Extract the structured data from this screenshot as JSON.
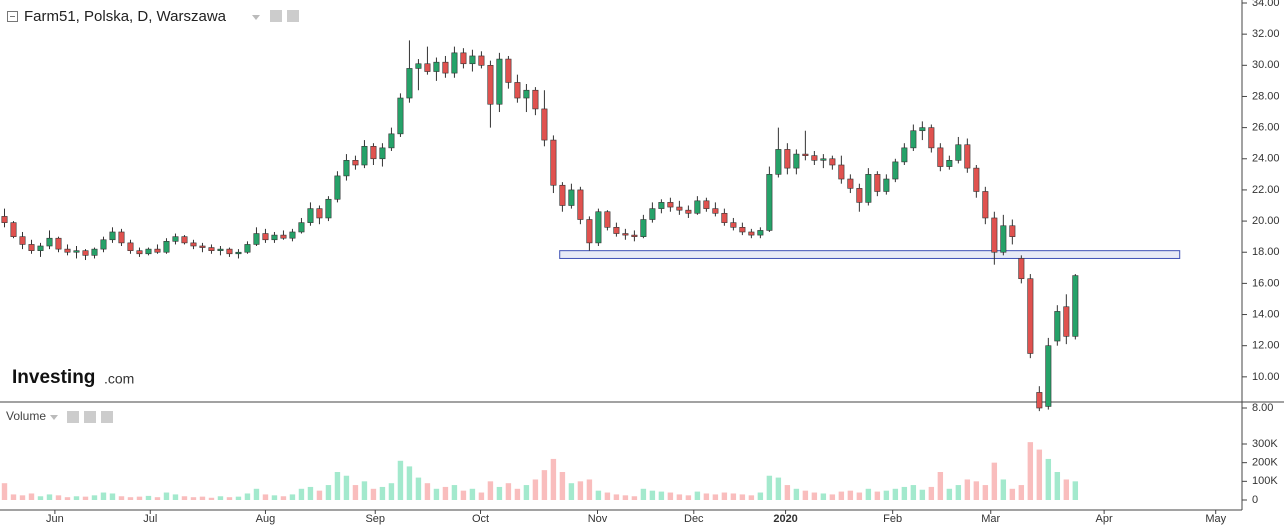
{
  "chart_data": {
    "type": "candlestick",
    "title": "Farm51, Polska, D, Warszawa",
    "volume_title": "Volume",
    "logo": {
      "brand": "Investing",
      "suffix": ".com"
    },
    "up_color": "#26a269",
    "down_color": "#e0524f",
    "volume_up_color": "#a3e9cd",
    "volume_down_color": "#f9bdbd",
    "xlim": [
      -0.5,
      137.3
    ],
    "xticks": [
      {
        "value": 5.6,
        "label": "Jun"
      },
      {
        "value": 16.2,
        "label": "Jul"
      },
      {
        "value": 29,
        "label": "Aug"
      },
      {
        "value": 41.2,
        "label": "Sep"
      },
      {
        "value": 52.9,
        "label": "Oct"
      },
      {
        "value": 65.9,
        "label": "Nov"
      },
      {
        "value": 76.6,
        "label": "Dec"
      },
      {
        "value": 86.8,
        "label": "2020"
      },
      {
        "value": 98.7,
        "label": "Feb"
      },
      {
        "value": 109.6,
        "label": "Mar"
      },
      {
        "value": 122.2,
        "label": "Apr"
      },
      {
        "value": 134.6,
        "label": "May"
      }
    ],
    "ylim": [
      8,
      34
    ],
    "yticks": [
      {
        "value": 8,
        "label": "8.00"
      },
      {
        "value": 10,
        "label": "10.00"
      },
      {
        "value": 12,
        "label": "12.00"
      },
      {
        "value": 14,
        "label": "14.00"
      },
      {
        "value": 16,
        "label": "16.00"
      },
      {
        "value": 18,
        "label": "18.00"
      },
      {
        "value": 20,
        "label": "20.00"
      },
      {
        "value": 22,
        "label": "22.00"
      },
      {
        "value": 24,
        "label": "24.00"
      },
      {
        "value": 26,
        "label": "26.00"
      },
      {
        "value": 28,
        "label": "28.00"
      },
      {
        "value": 30,
        "label": "30.00"
      },
      {
        "value": 32,
        "label": "32.00"
      },
      {
        "value": 34,
        "label": "34.00"
      }
    ],
    "y2lim": [
      0,
      300000
    ],
    "y2ticks": [
      0,
      {
        "value": 100000,
        "label": "100K"
      },
      {
        "value": 200000,
        "label": "200K"
      },
      {
        "value": 300000,
        "label": "300K"
      }
    ],
    "zone": {
      "xlim": [
        61.7,
        130.6
      ],
      "ylim": [
        17.6,
        18.1
      ],
      "color": "#3f51b5"
    },
    "ohlc": [
      [
        20.3,
        20.8,
        19.6,
        19.9
      ],
      [
        19.9,
        20.0,
        18.9,
        19.0
      ],
      [
        19.0,
        19.3,
        18.2,
        18.5
      ],
      [
        18.5,
        18.8,
        17.9,
        18.1
      ],
      [
        18.1,
        18.6,
        17.7,
        18.4
      ],
      [
        18.4,
        19.4,
        18.2,
        18.9
      ],
      [
        18.9,
        19.0,
        18.0,
        18.2
      ],
      [
        18.2,
        18.5,
        17.8,
        18.0
      ],
      [
        18.0,
        18.4,
        17.6,
        18.1
      ],
      [
        18.1,
        18.2,
        17.5,
        17.8
      ],
      [
        17.8,
        18.3,
        17.6,
        18.2
      ],
      [
        18.2,
        19.0,
        18.0,
        18.8
      ],
      [
        18.8,
        19.6,
        18.6,
        19.3
      ],
      [
        19.3,
        19.5,
        18.4,
        18.6
      ],
      [
        18.6,
        18.8,
        17.9,
        18.1
      ],
      [
        18.1,
        18.3,
        17.7,
        17.9
      ],
      [
        17.9,
        18.3,
        17.8,
        18.2
      ],
      [
        18.2,
        18.5,
        17.9,
        18.0
      ],
      [
        18.0,
        18.9,
        17.9,
        18.7
      ],
      [
        18.7,
        19.2,
        18.5,
        19.0
      ],
      [
        19.0,
        19.1,
        18.5,
        18.6
      ],
      [
        18.6,
        18.8,
        18.2,
        18.4
      ],
      [
        18.4,
        18.6,
        18.0,
        18.3
      ],
      [
        18.3,
        18.5,
        17.9,
        18.1
      ],
      [
        18.1,
        18.4,
        17.8,
        18.2
      ],
      [
        18.2,
        18.3,
        17.7,
        17.9
      ],
      [
        17.9,
        18.2,
        17.6,
        18.0
      ],
      [
        18.0,
        18.7,
        17.9,
        18.5
      ],
      [
        18.5,
        19.6,
        18.4,
        19.2
      ],
      [
        19.2,
        19.5,
        18.6,
        18.8
      ],
      [
        18.8,
        19.3,
        18.6,
        19.1
      ],
      [
        19.1,
        19.4,
        18.8,
        18.9
      ],
      [
        18.9,
        19.5,
        18.7,
        19.3
      ],
      [
        19.3,
        20.2,
        19.2,
        19.9
      ],
      [
        19.9,
        21.2,
        19.7,
        20.8
      ],
      [
        20.8,
        21.0,
        19.8,
        20.2
      ],
      [
        20.2,
        21.6,
        20.0,
        21.4
      ],
      [
        21.4,
        23.2,
        21.2,
        22.9
      ],
      [
        22.9,
        24.3,
        22.6,
        23.9
      ],
      [
        23.9,
        24.2,
        23.3,
        23.6
      ],
      [
        23.6,
        25.2,
        23.4,
        24.8
      ],
      [
        24.8,
        25.0,
        23.6,
        24.0
      ],
      [
        24.0,
        25.0,
        23.5,
        24.7
      ],
      [
        24.7,
        26.0,
        24.5,
        25.6
      ],
      [
        25.6,
        28.2,
        25.4,
        27.9
      ],
      [
        27.9,
        31.6,
        27.6,
        29.8
      ],
      [
        29.8,
        30.4,
        28.4,
        30.1
      ],
      [
        30.1,
        31.2,
        29.4,
        29.6
      ],
      [
        29.6,
        30.5,
        29.0,
        30.2
      ],
      [
        30.2,
        30.6,
        29.2,
        29.5
      ],
      [
        29.5,
        31.2,
        29.2,
        30.8
      ],
      [
        30.8,
        31.1,
        29.8,
        30.1
      ],
      [
        30.1,
        31.0,
        29.6,
        30.6
      ],
      [
        30.6,
        30.9,
        29.8,
        30.0
      ],
      [
        30.0,
        30.3,
        26.0,
        27.5
      ],
      [
        27.5,
        30.8,
        27.0,
        30.4
      ],
      [
        30.4,
        30.6,
        28.5,
        28.9
      ],
      [
        28.9,
        29.4,
        27.6,
        27.9
      ],
      [
        27.9,
        28.8,
        27.0,
        28.4
      ],
      [
        28.4,
        28.6,
        26.8,
        27.2
      ],
      [
        27.2,
        28.4,
        24.8,
        25.2
      ],
      [
        25.2,
        25.5,
        21.8,
        22.3
      ],
      [
        22.3,
        22.5,
        20.6,
        21.0
      ],
      [
        21.0,
        22.4,
        20.8,
        22.0
      ],
      [
        22.0,
        22.2,
        19.8,
        20.1
      ],
      [
        20.1,
        20.3,
        18.1,
        18.6
      ],
      [
        18.6,
        20.8,
        18.4,
        20.6
      ],
      [
        20.6,
        20.7,
        19.4,
        19.6
      ],
      [
        19.6,
        19.9,
        19.0,
        19.2
      ],
      [
        19.2,
        19.5,
        18.8,
        19.1
      ],
      [
        19.1,
        19.4,
        18.7,
        19.0
      ],
      [
        19.0,
        20.4,
        18.9,
        20.1
      ],
      [
        20.1,
        21.2,
        19.9,
        20.8
      ],
      [
        20.8,
        21.4,
        20.5,
        21.2
      ],
      [
        21.2,
        21.5,
        20.6,
        20.9
      ],
      [
        20.9,
        21.3,
        20.4,
        20.7
      ],
      [
        20.7,
        21.0,
        20.2,
        20.5
      ],
      [
        20.5,
        21.6,
        20.4,
        21.3
      ],
      [
        21.3,
        21.5,
        20.6,
        20.8
      ],
      [
        20.8,
        21.2,
        20.3,
        20.5
      ],
      [
        20.5,
        20.8,
        19.7,
        19.9
      ],
      [
        19.9,
        20.2,
        19.4,
        19.6
      ],
      [
        19.6,
        19.9,
        19.1,
        19.3
      ],
      [
        19.3,
        19.5,
        18.9,
        19.1
      ],
      [
        19.1,
        19.6,
        18.9,
        19.4
      ],
      [
        19.4,
        23.5,
        19.3,
        23.0
      ],
      [
        23.0,
        26.0,
        22.8,
        24.6
      ],
      [
        24.6,
        25.0,
        23.0,
        23.4
      ],
      [
        23.4,
        24.6,
        23.0,
        24.3
      ],
      [
        24.3,
        25.8,
        23.9,
        24.2
      ],
      [
        24.2,
        24.5,
        23.6,
        23.9
      ],
      [
        23.9,
        24.3,
        23.4,
        24.0
      ],
      [
        24.0,
        24.2,
        23.3,
        23.6
      ],
      [
        23.6,
        24.2,
        22.4,
        22.7
      ],
      [
        22.7,
        23.0,
        21.8,
        22.1
      ],
      [
        22.1,
        22.4,
        20.6,
        21.2
      ],
      [
        21.2,
        23.4,
        21.0,
        23.0
      ],
      [
        23.0,
        23.2,
        21.6,
        21.9
      ],
      [
        21.9,
        23.0,
        21.7,
        22.7
      ],
      [
        22.7,
        24.0,
        22.5,
        23.8
      ],
      [
        23.8,
        25.0,
        23.6,
        24.7
      ],
      [
        24.7,
        26.2,
        24.5,
        25.8
      ],
      [
        25.8,
        26.4,
        25.2,
        26.0
      ],
      [
        26.0,
        26.2,
        24.4,
        24.7
      ],
      [
        24.7,
        25.0,
        23.2,
        23.5
      ],
      [
        23.5,
        24.2,
        23.3,
        23.9
      ],
      [
        23.9,
        25.4,
        23.7,
        24.9
      ],
      [
        24.9,
        25.3,
        23.1,
        23.4
      ],
      [
        23.4,
        23.6,
        21.5,
        21.9
      ],
      [
        21.9,
        22.2,
        19.8,
        20.2
      ],
      [
        20.2,
        20.6,
        17.2,
        18.0
      ],
      [
        18.0,
        20.4,
        17.8,
        19.7
      ],
      [
        19.7,
        20.1,
        18.5,
        19.0
      ],
      [
        17.6,
        17.8,
        16.0,
        16.3
      ],
      [
        16.3,
        16.6,
        11.2,
        11.5
      ],
      [
        9.0,
        9.4,
        7.8,
        8.0
      ],
      [
        8.1,
        12.5,
        7.9,
        12.0
      ],
      [
        12.3,
        14.6,
        12.0,
        14.2
      ],
      [
        14.5,
        15.3,
        12.1,
        12.6
      ],
      [
        12.6,
        16.6,
        12.4,
        16.5
      ]
    ],
    "volume": [
      90000,
      30000,
      25000,
      35000,
      20000,
      30000,
      25000,
      15000,
      20000,
      18000,
      25000,
      40000,
      35000,
      20000,
      15000,
      18000,
      22000,
      15000,
      40000,
      30000,
      20000,
      15000,
      18000,
      12000,
      20000,
      15000,
      18000,
      35000,
      60000,
      30000,
      25000,
      20000,
      30000,
      60000,
      70000,
      50000,
      80000,
      150000,
      130000,
      80000,
      100000,
      60000,
      70000,
      90000,
      210000,
      180000,
      120000,
      90000,
      60000,
      70000,
      80000,
      50000,
      60000,
      40000,
      100000,
      70000,
      90000,
      60000,
      80000,
      110000,
      160000,
      220000,
      150000,
      90000,
      100000,
      110000,
      50000,
      40000,
      30000,
      25000,
      20000,
      60000,
      50000,
      45000,
      40000,
      30000,
      25000,
      45000,
      35000,
      30000,
      40000,
      35000,
      30000,
      25000,
      40000,
      130000,
      120000,
      80000,
      60000,
      50000,
      40000,
      35000,
      30000,
      45000,
      50000,
      40000,
      60000,
      45000,
      50000,
      60000,
      70000,
      80000,
      55000,
      70000,
      150000,
      60000,
      80000,
      110000,
      100000,
      80000,
      200000,
      110000,
      60000,
      80000,
      310000,
      270000,
      220000,
      150000,
      110000,
      100000
    ]
  }
}
